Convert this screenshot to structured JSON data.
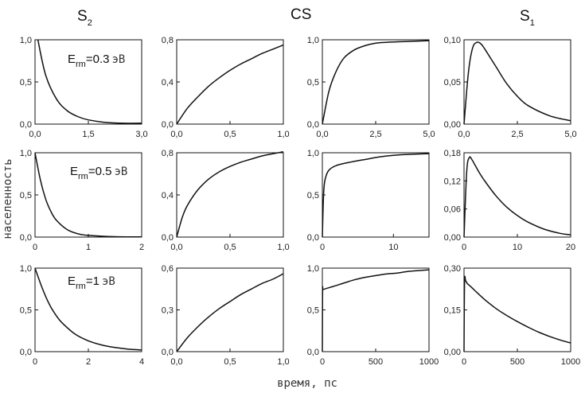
{
  "figure": {
    "ylabel": "населенность",
    "xlabel": "время, пс",
    "columns": [
      {
        "base": "S",
        "sub": "2"
      },
      {
        "base": "CS",
        "sub": ""
      },
      {
        "base": "S",
        "sub": "1"
      }
    ],
    "row_annotations": [
      {
        "prefix": "E",
        "sub": "rm",
        "value": "=0.3",
        "unit": "эВ"
      },
      {
        "prefix": "E",
        "sub": "rm",
        "value": "=0.5",
        "unit": "эВ"
      },
      {
        "prefix": "E",
        "sub": "rm",
        "value": "=1",
        "unit": "эВ"
      }
    ]
  },
  "chart_data": [
    {
      "type": "line",
      "panel": "S2, Erm=0.3 эВ",
      "xlim": [
        0,
        3
      ],
      "ylim": [
        0,
        1
      ],
      "xticks": [
        "0,0",
        "1,5",
        "3,0"
      ],
      "yticks": [
        "0,0",
        "0,5",
        "1,0"
      ],
      "x": [
        0.08,
        0.3,
        0.6,
        0.9,
        1.2,
        1.5,
        2.0,
        2.5,
        3.0
      ],
      "y": [
        1.0,
        0.58,
        0.3,
        0.16,
        0.09,
        0.05,
        0.02,
        0.01,
        0.01
      ]
    },
    {
      "type": "line",
      "panel": "CS, Erm=0.3 эВ",
      "xlim": [
        0,
        1
      ],
      "ylim": [
        0,
        0.8
      ],
      "xticks": [
        "0,0",
        "0,5",
        "1,0"
      ],
      "yticks": [
        "0,0",
        "0,4",
        "0,8"
      ],
      "x": [
        0.0,
        0.1,
        0.2,
        0.3,
        0.4,
        0.5,
        0.6,
        0.7,
        0.8,
        0.9,
        1.0
      ],
      "y": [
        0.0,
        0.15,
        0.26,
        0.36,
        0.44,
        0.51,
        0.57,
        0.62,
        0.67,
        0.71,
        0.75
      ]
    },
    {
      "type": "line",
      "panel": "CS, Erm=0.3 эВ",
      "xlim": [
        0,
        5
      ],
      "ylim": [
        0,
        1
      ],
      "xticks": [
        "0,0",
        "2,5",
        "5,0"
      ],
      "yticks": [
        "0,0",
        "0,5",
        "1,0"
      ],
      "x": [
        0.0,
        0.3,
        0.6,
        1.0,
        1.5,
        2.0,
        2.5,
        3.0,
        4.0,
        5.0
      ],
      "y": [
        0.0,
        0.38,
        0.6,
        0.78,
        0.88,
        0.93,
        0.96,
        0.97,
        0.98,
        0.99
      ]
    },
    {
      "type": "line",
      "panel": "S1, Erm=0.3 эВ",
      "xlim": [
        0,
        5
      ],
      "ylim": [
        0,
        0.1
      ],
      "xticks": [
        "0,0",
        "2,5",
        "5,0"
      ],
      "yticks": [
        "0,00",
        "0,05",
        "0,10"
      ],
      "x": [
        0.0,
        0.2,
        0.4,
        0.6,
        0.8,
        1.0,
        1.5,
        2.0,
        2.5,
        3.0,
        4.0,
        5.0
      ],
      "y": [
        0.0,
        0.06,
        0.09,
        0.097,
        0.095,
        0.088,
        0.068,
        0.048,
        0.033,
        0.022,
        0.01,
        0.004
      ]
    },
    {
      "type": "line",
      "panel": "S2, Erm=0.5 эВ",
      "xlim": [
        0,
        2
      ],
      "ylim": [
        0,
        1
      ],
      "xticks": [
        "0",
        "1",
        "2"
      ],
      "yticks": [
        "0,0",
        "0,5",
        "1,0"
      ],
      "x": [
        0.0,
        0.1,
        0.2,
        0.3,
        0.4,
        0.6,
        0.8,
        1.0,
        1.5,
        2.0
      ],
      "y": [
        1.0,
        0.68,
        0.45,
        0.3,
        0.2,
        0.09,
        0.04,
        0.02,
        0.005,
        0.002
      ]
    },
    {
      "type": "line",
      "panel": "CS, Erm=0.5 эВ",
      "xlim": [
        0,
        1
      ],
      "ylim": [
        0,
        0.8
      ],
      "xticks": [
        "0,0",
        "0,5",
        "1,0"
      ],
      "yticks": [
        "0,0",
        "0,4",
        "0,8"
      ],
      "x": [
        0.0,
        0.05,
        0.1,
        0.2,
        0.3,
        0.4,
        0.5,
        0.6,
        0.7,
        0.8,
        0.9,
        1.0
      ],
      "y": [
        0.0,
        0.18,
        0.3,
        0.45,
        0.55,
        0.62,
        0.67,
        0.71,
        0.74,
        0.77,
        0.79,
        0.81
      ]
    },
    {
      "type": "line",
      "panel": "CS, Erm=0.5 эВ",
      "xlim": [
        0,
        15
      ],
      "ylim": [
        0,
        1
      ],
      "xticks": [
        "0",
        "10"
      ],
      "yticks": [
        "0,0",
        "0,5",
        "1,0"
      ],
      "x": [
        0.0,
        0.2,
        0.5,
        1.0,
        2.0,
        4.0,
        6.0,
        8.0,
        10.0,
        12.0,
        15.0
      ],
      "y": [
        0.0,
        0.55,
        0.72,
        0.8,
        0.85,
        0.89,
        0.92,
        0.95,
        0.97,
        0.98,
        0.99
      ]
    },
    {
      "type": "line",
      "panel": "S1, Erm=0.5 эВ",
      "xlim": [
        0,
        20
      ],
      "ylim": [
        0,
        0.18
      ],
      "xticks": [
        "0",
        "10",
        "20"
      ],
      "yticks": [
        "0,00",
        "0,06",
        "0,12",
        "0,18"
      ],
      "x": [
        0.0,
        0.5,
        1.0,
        1.5,
        2.0,
        3.0,
        4.0,
        6.0,
        8.0,
        10.0,
        12.0,
        15.0,
        18.0,
        20.0
      ],
      "y": [
        0.0,
        0.14,
        0.17,
        0.165,
        0.155,
        0.135,
        0.118,
        0.088,
        0.064,
        0.046,
        0.032,
        0.017,
        0.008,
        0.005
      ]
    },
    {
      "type": "line",
      "panel": "S2, Erm=1 эВ",
      "xlim": [
        0,
        4
      ],
      "ylim": [
        0,
        1
      ],
      "xticks": [
        "0",
        "2",
        "4"
      ],
      "yticks": [
        "0,0",
        "0,5",
        "1,0"
      ],
      "x": [
        0.0,
        0.2,
        0.4,
        0.6,
        0.8,
        1.0,
        1.5,
        2.0,
        2.5,
        3.0,
        3.5,
        4.0
      ],
      "y": [
        1.0,
        0.82,
        0.66,
        0.53,
        0.43,
        0.35,
        0.21,
        0.13,
        0.08,
        0.05,
        0.03,
        0.02
      ]
    },
    {
      "type": "line",
      "panel": "CS, Erm=1 эВ",
      "xlim": [
        0,
        1
      ],
      "ylim": [
        0,
        0.6
      ],
      "xticks": [
        "0,0",
        "0,5",
        "1,0"
      ],
      "yticks": [
        "0,0",
        "0,3",
        "0,6"
      ],
      "x": [
        0.0,
        0.1,
        0.2,
        0.3,
        0.4,
        0.5,
        0.6,
        0.7,
        0.8,
        0.9,
        1.0
      ],
      "y": [
        0.0,
        0.1,
        0.18,
        0.25,
        0.31,
        0.36,
        0.41,
        0.45,
        0.49,
        0.52,
        0.56
      ]
    },
    {
      "type": "line",
      "panel": "CS, Erm=1 эВ",
      "xlim": [
        0,
        1000
      ],
      "ylim": [
        0,
        1
      ],
      "xticks": [
        "0",
        "500",
        "1000"
      ],
      "yticks": [
        "0,0",
        "0,5",
        "1,0"
      ],
      "x": [
        0,
        2,
        5,
        20,
        100,
        200,
        300,
        400,
        500,
        600,
        700,
        800,
        900,
        1000
      ],
      "y": [
        0.0,
        0.72,
        0.74,
        0.75,
        0.78,
        0.82,
        0.86,
        0.89,
        0.91,
        0.93,
        0.94,
        0.96,
        0.97,
        0.98
      ]
    },
    {
      "type": "line",
      "panel": "S1, Erm=1 эВ",
      "xlim": [
        0,
        1000
      ],
      "ylim": [
        0,
        0.3
      ],
      "xticks": [
        "0",
        "500",
        "1000"
      ],
      "yticks": [
        "0,00",
        "0,15",
        "0,30"
      ],
      "x": [
        0,
        5,
        15,
        30,
        60,
        100,
        200,
        300,
        400,
        500,
        600,
        700,
        800,
        900,
        1000
      ],
      "y": [
        0.0,
        0.25,
        0.255,
        0.245,
        0.235,
        0.22,
        0.185,
        0.155,
        0.13,
        0.108,
        0.088,
        0.07,
        0.055,
        0.042,
        0.031
      ]
    }
  ]
}
